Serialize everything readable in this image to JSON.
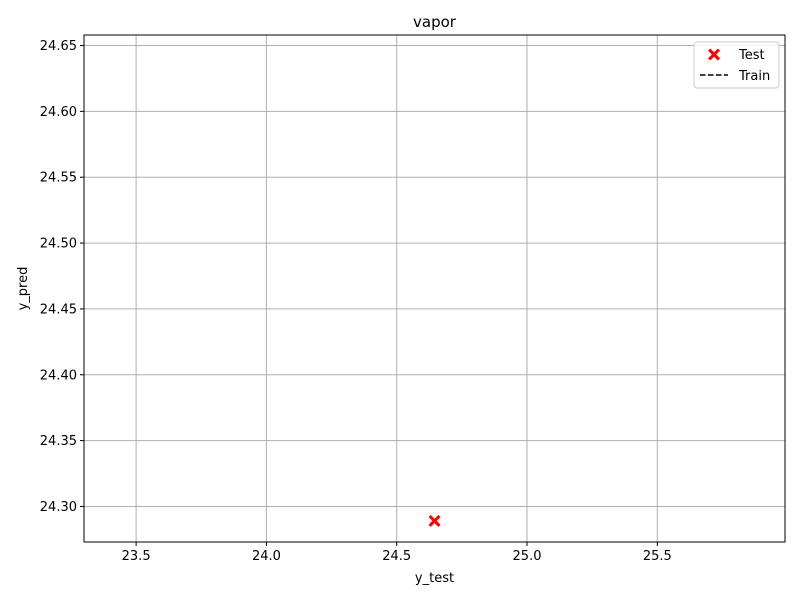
{
  "chart_data": {
    "type": "scatter",
    "title": "vapor",
    "xlabel": "y_test",
    "ylabel": "y_pred",
    "xlim": [
      23.3,
      25.99
    ],
    "ylim": [
      24.273,
      24.658
    ],
    "xticks": [
      "23.5",
      "24.0",
      "24.5",
      "25.0",
      "25.5"
    ],
    "yticks": [
      "24.30",
      "24.35",
      "24.40",
      "24.45",
      "24.50",
      "24.55",
      "24.60",
      "24.65"
    ],
    "xtick_values": [
      23.5,
      24.0,
      24.5,
      25.0,
      25.5
    ],
    "ytick_values": [
      24.3,
      24.35,
      24.4,
      24.45,
      24.5,
      24.55,
      24.6,
      24.65
    ],
    "grid": true,
    "legend_position": "top-right",
    "series": [
      {
        "name": "Test",
        "kind": "scatter",
        "marker": "x-filled",
        "color": "#ff0000",
        "points": [
          {
            "x": 24.645,
            "y": 24.289
          }
        ]
      },
      {
        "name": "Train",
        "kind": "line",
        "linestyle": "dashed",
        "color": "#000000",
        "points": []
      }
    ]
  }
}
